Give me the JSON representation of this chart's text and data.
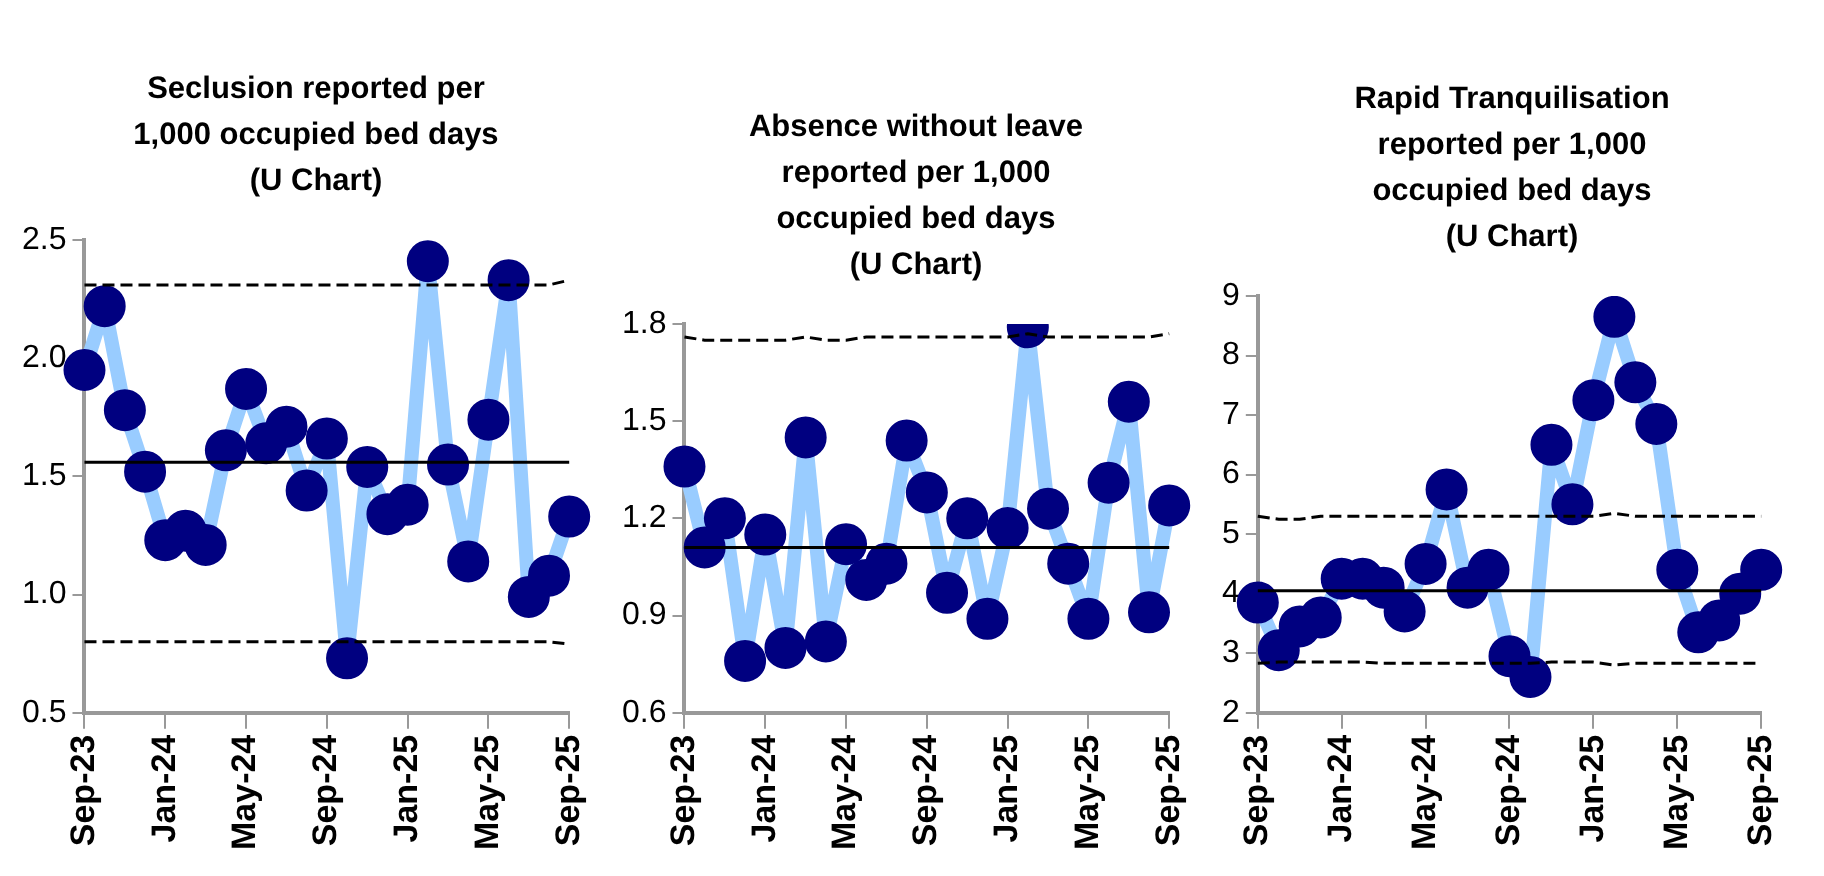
{
  "chart_data": [
    {
      "type": "line",
      "title": "Seclusion reported per 1,000 occupied bed days (U Chart)",
      "categories": [
        "Sep-23",
        null,
        null,
        null,
        "Jan-24",
        null,
        null,
        null,
        "May-24",
        null,
        null,
        null,
        "Sep-24",
        null,
        null,
        null,
        "Jan-25",
        null,
        null,
        null,
        "May-25",
        null,
        null,
        null,
        "Sep-25"
      ],
      "series": [
        {
          "color": "#99ccff",
          "colors": [
            "#000080",
            "#000080",
            "#000080",
            "#000080",
            "#000080",
            "#000080",
            "#000080",
            "#000080",
            "#000080",
            "#000080",
            "#000080",
            "#000080",
            "#000080",
            "#000080",
            "#000080",
            "#000080",
            "#000080",
            "#000080",
            "#000080",
            "#000080",
            "#000080",
            "#000080",
            "#000080",
            "#000080",
            "#000080"
          ],
          "marker": "circle",
          "line_style": "solid",
          "values": [
            1.95,
            2.22,
            1.78,
            1.52,
            1.23,
            1.27,
            1.21,
            1.61,
            1.87,
            1.64,
            1.71,
            1.44,
            1.66,
            0.73,
            1.54,
            1.34,
            1.38,
            2.41,
            1.55,
            1.14,
            1.74,
            2.33,
            0.99,
            1.08,
            1.33
          ]
        },
        {
          "color": "#000000",
          "marker": "none",
          "line_style": "solid",
          "values": [
            1.56,
            1.56,
            1.56,
            1.56,
            1.56,
            1.56,
            1.56,
            1.56,
            1.56,
            1.56,
            1.56,
            1.56,
            1.56,
            1.56,
            1.56,
            1.56,
            1.56,
            1.56,
            1.56,
            1.56,
            1.56,
            1.56,
            1.56,
            1.56,
            1.56
          ]
        },
        {
          "color": "#000000",
          "marker": "none",
          "line_style": "dashed",
          "values": [
            2.31,
            2.31,
            2.31,
            2.31,
            2.31,
            2.31,
            2.31,
            2.31,
            2.31,
            2.31,
            2.31,
            2.31,
            2.31,
            2.31,
            2.31,
            2.31,
            2.31,
            2.31,
            2.31,
            2.31,
            2.31,
            2.31,
            2.31,
            2.31,
            2.33
          ]
        },
        {
          "color": "#000000",
          "marker": "none",
          "line_style": "dashed",
          "values": [
            0.8,
            0.8,
            0.8,
            0.8,
            0.8,
            0.8,
            0.8,
            0.8,
            0.8,
            0.8,
            0.8,
            0.8,
            0.8,
            0.8,
            0.8,
            0.8,
            0.8,
            0.8,
            0.8,
            0.8,
            0.8,
            0.8,
            0.8,
            0.8,
            0.79
          ]
        }
      ],
      "ylim": [
        0.5,
        2.5
      ],
      "yticks": [
        {
          "value": 0.5,
          "label": "0.5"
        },
        {
          "value": 1,
          "label": "1.0"
        },
        {
          "value": 1.5,
          "label": "1.5"
        },
        {
          "value": 2,
          "label": "2.0"
        },
        {
          "value": 2.5,
          "label": "2.5"
        }
      ],
      "grid": false,
      "legend": false
    },
    {
      "type": "line",
      "title": "Absence without leave reported per 1,000 occupied bed days (U Chart)",
      "categories": [
        "Sep-23",
        null,
        null,
        null,
        "Jan-24",
        null,
        null,
        null,
        "May-24",
        null,
        null,
        null,
        "Sep-24",
        null,
        null,
        null,
        "Jan-25",
        null,
        null,
        null,
        "May-25",
        null,
        null,
        null,
        "Sep-25"
      ],
      "series": [
        {
          "color": "#99ccff",
          "colors": [
            "#000080",
            "#000080",
            "#000080",
            "#000080",
            "#000080",
            "#000080",
            "#000080",
            "#000080",
            "#000080",
            "#000080",
            "#000080",
            "#000080",
            "#000080",
            "#000080",
            "#000080",
            "#000080",
            "#000080",
            "#000080",
            "#000080",
            "#000080",
            "#000080",
            "#000080",
            "#000080",
            "#000080",
            "#000080"
          ],
          "marker": "circle",
          "line_style": "solid",
          "values": [
            1.36,
            1.11,
            1.2,
            0.76,
            1.15,
            0.8,
            1.45,
            0.82,
            1.12,
            1.01,
            1.06,
            1.44,
            1.28,
            0.97,
            1.2,
            0.89,
            1.17,
            1.79,
            1.23,
            1.06,
            0.89,
            1.31,
            1.56,
            0.91,
            1.24
          ]
        },
        {
          "color": "#000000",
          "marker": "none",
          "line_style": "solid",
          "values": [
            1.11,
            1.11,
            1.11,
            1.11,
            1.11,
            1.11,
            1.11,
            1.11,
            1.11,
            1.11,
            1.11,
            1.11,
            1.11,
            1.11,
            1.11,
            1.11,
            1.11,
            1.11,
            1.11,
            1.11,
            1.11,
            1.11,
            1.11,
            1.11,
            1.11
          ]
        },
        {
          "color": "#000000",
          "marker": "none",
          "line_style": "dashed",
          "values": [
            1.76,
            1.75,
            1.75,
            1.75,
            1.75,
            1.75,
            1.76,
            1.75,
            1.75,
            1.76,
            1.76,
            1.76,
            1.76,
            1.76,
            1.76,
            1.76,
            1.76,
            1.77,
            1.76,
            1.76,
            1.76,
            1.76,
            1.76,
            1.76,
            1.77
          ]
        }
      ],
      "ylim": [
        0.6,
        1.8
      ],
      "yticks": [
        0.6,
        0.9,
        1.2,
        1.5,
        1.8
      ],
      "grid": false,
      "legend": false
    },
    {
      "type": "line",
      "title": "Rapid Tranquilisation reported per 1,000 occupied bed days (U Chart)",
      "categories": [
        "Sep-23",
        null,
        null,
        null,
        "Jan-24",
        null,
        null,
        null,
        "May-24",
        null,
        null,
        null,
        "Sep-24",
        null,
        null,
        null,
        "Jan-25",
        null,
        null,
        null,
        "May-25",
        null,
        null,
        null,
        "Sep-25"
      ],
      "series": [
        {
          "color": "#99ccff",
          "colors": [
            "#000080",
            "#000080",
            "#000080",
            "#000080",
            "#000080",
            "#000080",
            "#000080",
            "#000080",
            "#000080",
            "#000080",
            "#000080",
            "#000080",
            "#000080",
            "#000080",
            "#000080",
            "#000080",
            "#000080",
            "#000080",
            "#000080",
            "#000080",
            "#000080",
            "#000080",
            "#000080",
            "#000080",
            "#000080"
          ],
          "marker": "circle",
          "line_style": "solid",
          "values": [
            3.85,
            3.05,
            3.45,
            3.6,
            4.25,
            4.25,
            4.1,
            3.7,
            4.5,
            5.75,
            4.1,
            4.4,
            2.95,
            2.6,
            6.5,
            5.5,
            7.25,
            8.65,
            7.55,
            6.85,
            4.4,
            3.35,
            3.55,
            4.0,
            4.4
          ]
        },
        {
          "color": "#000000",
          "marker": "none",
          "line_style": "solid",
          "values": [
            4.05,
            4.05,
            4.05,
            4.05,
            4.05,
            4.05,
            4.05,
            4.05,
            4.05,
            4.05,
            4.05,
            4.05,
            4.05,
            4.05,
            4.05,
            4.05,
            4.05,
            4.05,
            4.05,
            4.05,
            4.05,
            4.05,
            4.05,
            4.05,
            4.05
          ]
        },
        {
          "color": "#000000",
          "marker": "none",
          "line_style": "dashed",
          "values": [
            5.3,
            5.25,
            5.25,
            5.3,
            5.3,
            5.3,
            5.3,
            5.3,
            5.3,
            5.3,
            5.3,
            5.3,
            5.3,
            5.3,
            5.3,
            5.3,
            5.3,
            5.35,
            5.3,
            5.3,
            5.3,
            5.3,
            5.3,
            5.3,
            5.3
          ]
        },
        {
          "color": "#000000",
          "marker": "none",
          "line_style": "dashed",
          "values": [
            2.83,
            2.85,
            2.85,
            2.85,
            2.85,
            2.85,
            2.83,
            2.83,
            2.83,
            2.83,
            2.83,
            2.83,
            2.83,
            2.83,
            2.85,
            2.85,
            2.85,
            2.8,
            2.83,
            2.83,
            2.83,
            2.83,
            2.83,
            2.83,
            2.83
          ]
        }
      ],
      "ylim": [
        2,
        9
      ],
      "yticks": [
        2,
        3,
        4,
        5,
        6,
        7,
        8,
        9
      ],
      "grid": false,
      "legend": false
    }
  ]
}
